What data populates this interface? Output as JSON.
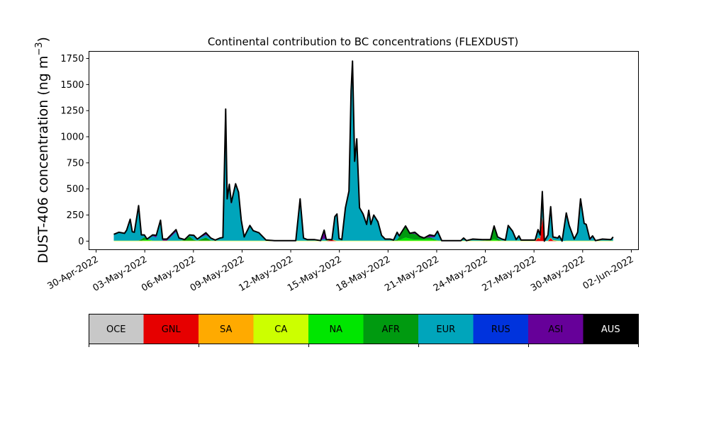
{
  "chart_data": {
    "type": "area",
    "stacked": true,
    "title": "Continental contribution to BC concentrations (FLEXDUST)",
    "ylabel": "DUST-406 concentration (ng m",
    "ylabel_sup": "−3",
    "ylabel_close": ")",
    "xlabel": "",
    "x_unit": "days since 30-Apr-2022 00:00",
    "xlim": [
      -0.44,
      33.44
    ],
    "ylim": [
      -82,
      1818
    ],
    "yticks": [
      0,
      250,
      500,
      750,
      1000,
      1250,
      1500,
      1750
    ],
    "ytick_labels": [
      "0",
      "250",
      "500",
      "750",
      "1000",
      "1250",
      "1500",
      "1750"
    ],
    "xticks": [
      0,
      3,
      6,
      9,
      12,
      15,
      18,
      21,
      24,
      27,
      30,
      33
    ],
    "xtick_labels": [
      "30-Apr-2022",
      "03-May-2022",
      "06-May-2022",
      "09-May-2022",
      "12-May-2022",
      "15-May-2022",
      "18-May-2022",
      "21-May-2022",
      "24-May-2022",
      "27-May-2022",
      "30-May-2022",
      "02-Jun-2022"
    ],
    "total": {
      "name": "Total",
      "color": "#000000",
      "x": [
        1.09,
        1.4,
        1.75,
        1.88,
        2.1,
        2.23,
        2.36,
        2.62,
        2.79,
        2.97,
        3.14,
        3.49,
        3.71,
        3.97,
        4.1,
        4.37,
        4.93,
        5.11,
        5.46,
        5.76,
        6.03,
        6.24,
        6.77,
        7.07,
        7.34,
        7.64,
        7.82,
        7.99,
        8.08,
        8.21,
        8.34,
        8.6,
        8.78,
        8.95,
        9.13,
        9.48,
        9.69,
        10.04,
        10.48,
        11.0,
        11.57,
        12.31,
        12.58,
        12.79,
        13.01,
        13.45,
        13.84,
        14.06,
        14.19,
        14.54,
        14.72,
        14.85,
        14.98,
        15.15,
        15.37,
        15.59,
        15.72,
        15.81,
        15.94,
        16.07,
        16.24,
        16.46,
        16.68,
        16.81,
        16.94,
        17.12,
        17.38,
        17.6,
        17.82,
        18.12,
        18.34,
        18.56,
        18.69,
        19.08,
        19.34,
        19.65,
        19.96,
        20.22,
        20.57,
        20.87,
        21.05,
        21.31,
        21.92,
        22.49,
        22.66,
        22.84,
        23.23,
        23.8,
        24.32,
        24.54,
        24.76,
        25.02,
        25.24,
        25.41,
        25.68,
        25.9,
        26.07,
        26.2,
        26.73,
        27.07,
        27.25,
        27.38,
        27.51,
        27.64,
        27.86,
        28.03,
        28.17,
        28.47,
        28.56,
        28.73,
        28.99,
        29.17,
        29.48,
        29.69,
        29.87,
        30.09,
        30.22,
        30.44,
        30.61,
        30.79,
        31.22,
        31.75,
        31.88
      ],
      "values": [
        65,
        85,
        75,
        105,
        210,
        90,
        85,
        340,
        60,
        60,
        20,
        60,
        55,
        200,
        20,
        20,
        110,
        30,
        15,
        60,
        55,
        20,
        80,
        30,
        10,
        30,
        35,
        1265,
        405,
        545,
        370,
        550,
        470,
        200,
        40,
        150,
        100,
        80,
        10,
        5,
        5,
        5,
        405,
        30,
        15,
        15,
        5,
        105,
        15,
        15,
        235,
        260,
        25,
        15,
        320,
        480,
        1440,
        1725,
        765,
        980,
        320,
        260,
        160,
        295,
        160,
        250,
        185,
        55,
        20,
        20,
        10,
        85,
        50,
        145,
        75,
        85,
        45,
        30,
        60,
        50,
        95,
        5,
        5,
        5,
        30,
        5,
        20,
        15,
        15,
        145,
        40,
        20,
        10,
        150,
        95,
        15,
        50,
        10,
        10,
        10,
        110,
        60,
        475,
        0,
        60,
        330,
        40,
        30,
        50,
        0,
        270,
        150,
        20,
        85,
        405,
        170,
        160,
        20,
        50,
        5,
        20,
        15,
        40
      ]
    },
    "series": [
      {
        "name": "OCE",
        "color": "#c8c8c8",
        "points": []
      },
      {
        "name": "GNL",
        "color": "#e60000",
        "points": [
          [
            14.3,
            0
          ],
          [
            14.54,
            12
          ],
          [
            14.8,
            0
          ],
          [
            27.07,
            0
          ],
          [
            27.25,
            30
          ],
          [
            27.38,
            20
          ],
          [
            27.51,
            230
          ],
          [
            27.64,
            0
          ],
          [
            27.9,
            0
          ],
          [
            28.03,
            30
          ],
          [
            28.2,
            0
          ]
        ]
      },
      {
        "name": "SA",
        "color": "#ffaa00",
        "points": []
      },
      {
        "name": "CA",
        "color": "#ccff00",
        "points": [
          [
            1.09,
            4
          ],
          [
            31.88,
            4
          ]
        ]
      },
      {
        "name": "NA",
        "color": "#00e600",
        "points": [
          [
            2.8,
            0
          ],
          [
            3.14,
            12
          ],
          [
            3.5,
            0
          ],
          [
            18.6,
            0
          ],
          [
            19.08,
            30
          ],
          [
            19.6,
            10
          ],
          [
            20.6,
            15
          ],
          [
            21.1,
            0
          ],
          [
            24.3,
            0
          ],
          [
            24.54,
            15
          ],
          [
            24.8,
            0
          ]
        ]
      },
      {
        "name": "AFR",
        "color": "#009a10",
        "points": [
          [
            2.6,
            0
          ],
          [
            3.0,
            30
          ],
          [
            3.4,
            0
          ],
          [
            5.4,
            0
          ],
          [
            5.76,
            40
          ],
          [
            6.1,
            0
          ],
          [
            6.5,
            0
          ],
          [
            6.77,
            30
          ],
          [
            7.1,
            0
          ],
          [
            18.5,
            0
          ],
          [
            19.08,
            100
          ],
          [
            19.65,
            55
          ],
          [
            20.5,
            20
          ],
          [
            21.1,
            0
          ],
          [
            24.2,
            0
          ],
          [
            24.54,
            125
          ],
          [
            24.8,
            0
          ]
        ]
      },
      {
        "name": "EUR",
        "color": "#00a5bb",
        "points": "remainder"
      },
      {
        "name": "RUS",
        "color": "#0033dd",
        "points": []
      },
      {
        "name": "ASI",
        "color": "#660099",
        "points": [
          [
            3.3,
            0
          ],
          [
            3.6,
            20
          ],
          [
            4.4,
            15
          ],
          [
            4.7,
            0
          ],
          [
            4.93,
            20
          ],
          [
            5.2,
            0
          ],
          [
            6.5,
            0
          ],
          [
            6.77,
            20
          ],
          [
            7.1,
            0
          ],
          [
            8.0,
            0
          ],
          [
            8.2,
            30
          ],
          [
            8.6,
            0
          ],
          [
            13.6,
            0
          ],
          [
            13.84,
            5
          ],
          [
            14.06,
            80
          ],
          [
            14.2,
            0
          ],
          [
            19.0,
            0
          ],
          [
            19.6,
            25
          ],
          [
            20.6,
            30
          ],
          [
            21.1,
            0
          ],
          [
            28.8,
            0
          ],
          [
            28.99,
            30
          ],
          [
            29.3,
            0
          ],
          [
            29.7,
            0
          ],
          [
            29.87,
            30
          ],
          [
            30.1,
            0
          ],
          [
            30.3,
            0
          ],
          [
            30.5,
            20
          ],
          [
            30.8,
            0
          ]
        ]
      },
      {
        "name": "AUS",
        "color": "#000000",
        "points": []
      }
    ]
  }
}
